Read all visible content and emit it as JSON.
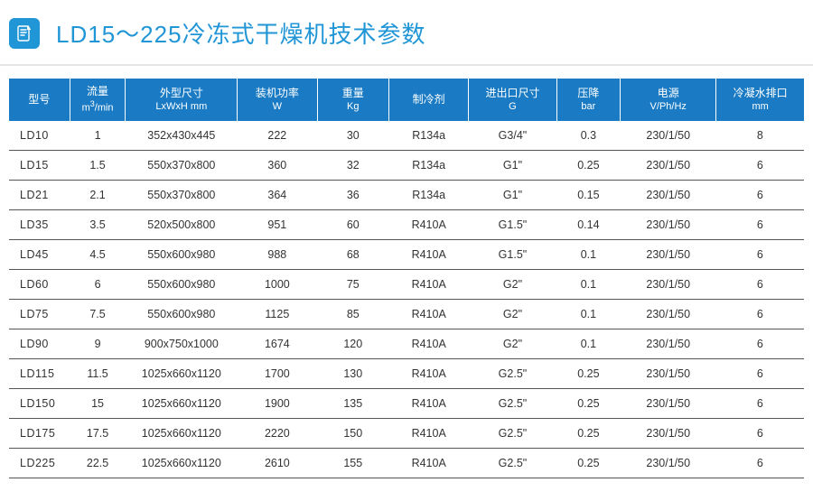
{
  "title": "LD15～225冷冻式干燥机技术参数",
  "header_colors": {
    "accent": "#2196d6",
    "th_bg": "#1a7bc4",
    "th_fg": "#ffffff",
    "row_border": "#555555"
  },
  "table": {
    "columns": [
      {
        "key": "model",
        "label": "型号",
        "sub": ""
      },
      {
        "key": "flow",
        "label": "流量",
        "sub": "m³/min"
      },
      {
        "key": "dim",
        "label": "外型尺寸",
        "sub": "LxWxH mm"
      },
      {
        "key": "power",
        "label": "装机功率",
        "sub": "W"
      },
      {
        "key": "weight",
        "label": "重量",
        "sub": "Kg"
      },
      {
        "key": "refr",
        "label": "制冷剂",
        "sub": ""
      },
      {
        "key": "conn",
        "label": "进出口尺寸",
        "sub": "G"
      },
      {
        "key": "drop",
        "label": "压降",
        "sub": "bar"
      },
      {
        "key": "elec",
        "label": "电源",
        "sub": "V/Ph/Hz"
      },
      {
        "key": "drain",
        "label": "冷凝水排口",
        "sub": "mm"
      }
    ],
    "rows": [
      [
        "LD10",
        "1",
        "352x430x445",
        "222",
        "30",
        "R134a",
        "G3/4\"",
        "0.3",
        "230/1/50",
        "8"
      ],
      [
        "LD15",
        "1.5",
        "550x370x800",
        "360",
        "32",
        "R134a",
        "G1\"",
        "0.25",
        "230/1/50",
        "6"
      ],
      [
        "LD21",
        "2.1",
        "550x370x800",
        "364",
        "36",
        "R134a",
        "G1\"",
        "0.15",
        "230/1/50",
        "6"
      ],
      [
        "LD35",
        "3.5",
        "520x500x800",
        "951",
        "60",
        "R410A",
        "G1.5\"",
        "0.14",
        "230/1/50",
        "6"
      ],
      [
        "LD45",
        "4.5",
        "550x600x980",
        "988",
        "68",
        "R410A",
        "G1.5\"",
        "0.1",
        "230/1/50",
        "6"
      ],
      [
        "LD60",
        "6",
        "550x600x980",
        "1000",
        "75",
        "R410A",
        "G2\"",
        "0.1",
        "230/1/50",
        "6"
      ],
      [
        "LD75",
        "7.5",
        "550x600x980",
        "1125",
        "85",
        "R410A",
        "G2\"",
        "0.1",
        "230/1/50",
        "6"
      ],
      [
        "LD90",
        "9",
        "900x750x1000",
        "1674",
        "120",
        "R410A",
        "G2\"",
        "0.1",
        "230/1/50",
        "6"
      ],
      [
        "LD115",
        "11.5",
        "1025x660x1120",
        "1700",
        "130",
        "R410A",
        "G2.5\"",
        "0.25",
        "230/1/50",
        "6"
      ],
      [
        "LD150",
        "15",
        "1025x660x1120",
        "1900",
        "135",
        "R410A",
        "G2.5\"",
        "0.25",
        "230/1/50",
        "6"
      ],
      [
        "LD175",
        "17.5",
        "1025x660x1120",
        "2220",
        "150",
        "R410A",
        "G2.5\"",
        "0.25",
        "230/1/50",
        "6"
      ],
      [
        "LD225",
        "22.5",
        "1025x660x1120",
        "2610",
        "155",
        "R410A",
        "G2.5\"",
        "0.25",
        "230/1/50",
        "6"
      ]
    ]
  }
}
